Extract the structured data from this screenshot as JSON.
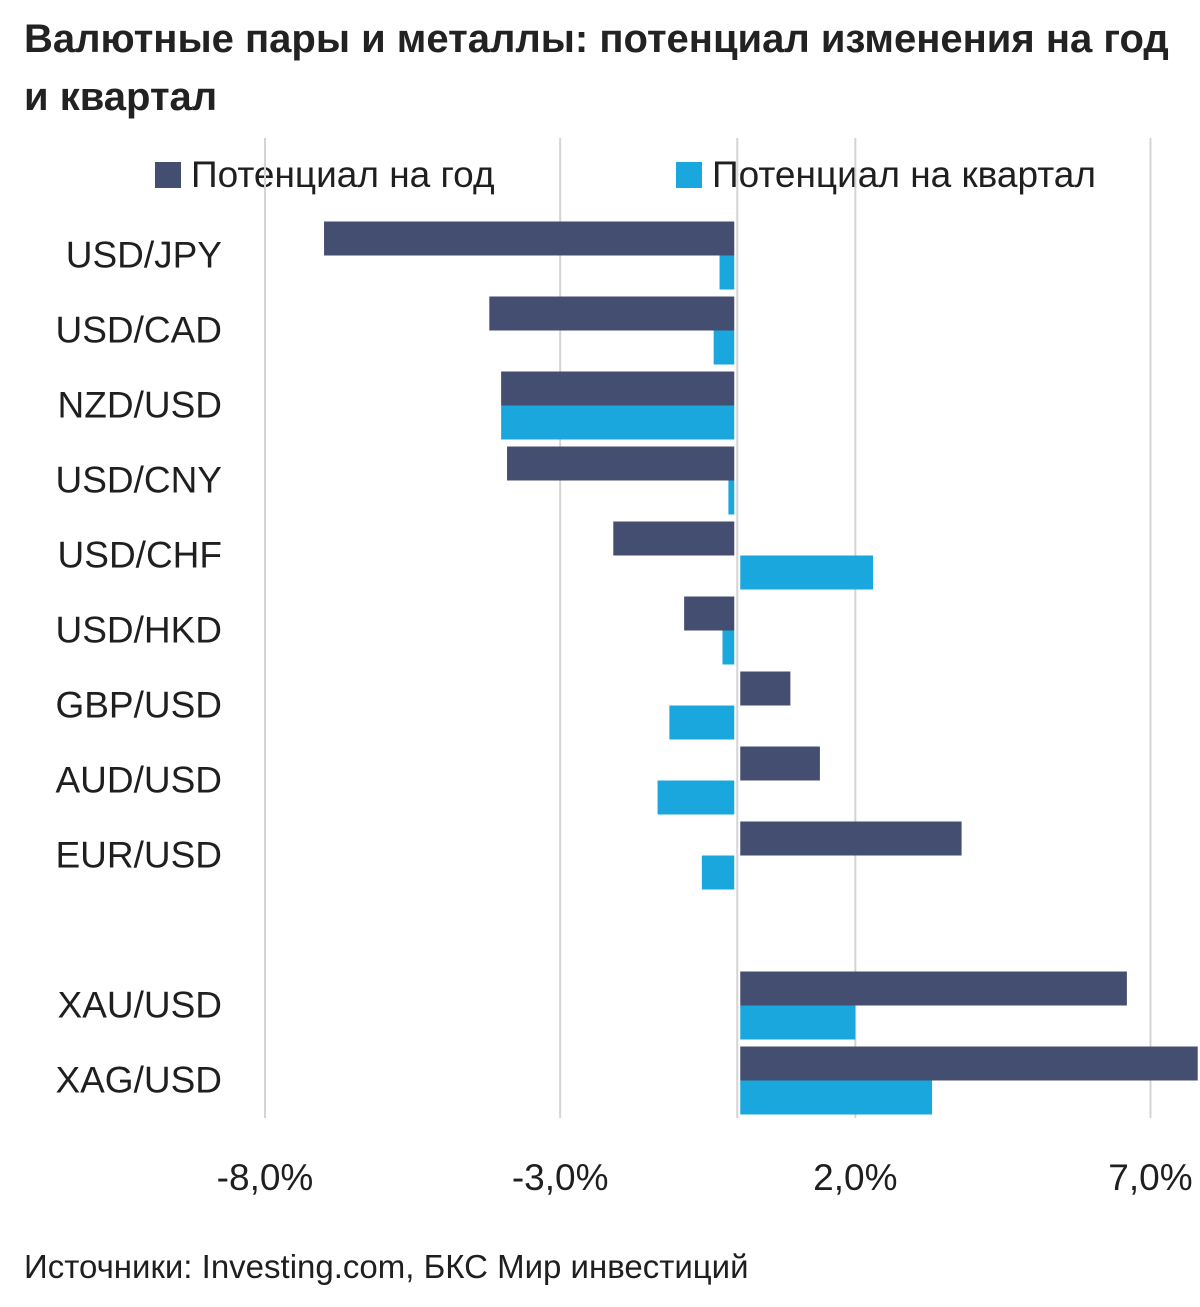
{
  "title": "Валютные пары и металлы: потенциал изменения на год и квартал",
  "source": "Источники: Investing.com, БКС Мир инвестиций",
  "colors": {
    "year": "#444e70",
    "quarter": "#1aa7de",
    "grid": "#d4d4d4"
  },
  "chart_data": {
    "type": "bar",
    "orientation": "horizontal",
    "title": "Валютные пары и металлы: потенциал изменения на год и квартал",
    "categories": [
      "USD/JPY",
      "USD/CAD",
      "NZD/USD",
      "USD/CNY",
      "USD/CHF",
      "USD/HKD",
      "GBP/USD",
      "AUD/USD",
      "EUR/USD",
      "",
      "XAU/USD",
      "XAG/USD"
    ],
    "series": [
      {
        "name": "Потенциал на год",
        "values": [
          -7.0,
          -4.2,
          -4.0,
          -3.9,
          -2.1,
          -0.9,
          0.9,
          1.4,
          3.8,
          null,
          6.6,
          7.8
        ]
      },
      {
        "name": "Потенциал на квартал",
        "values": [
          -0.3,
          -0.4,
          -4.0,
          -0.15,
          2.3,
          -0.25,
          -1.15,
          -1.35,
          -0.6,
          null,
          2.0,
          3.3
        ]
      }
    ],
    "xlim": [
      -8.0,
      7.5
    ],
    "ticks": [
      -8.0,
      -3.0,
      2.0,
      7.0
    ],
    "tick_labels": [
      "-8,0%",
      "-3,0%",
      "2,0%",
      "7,0%"
    ],
    "grid": true,
    "legend_position": "top"
  }
}
